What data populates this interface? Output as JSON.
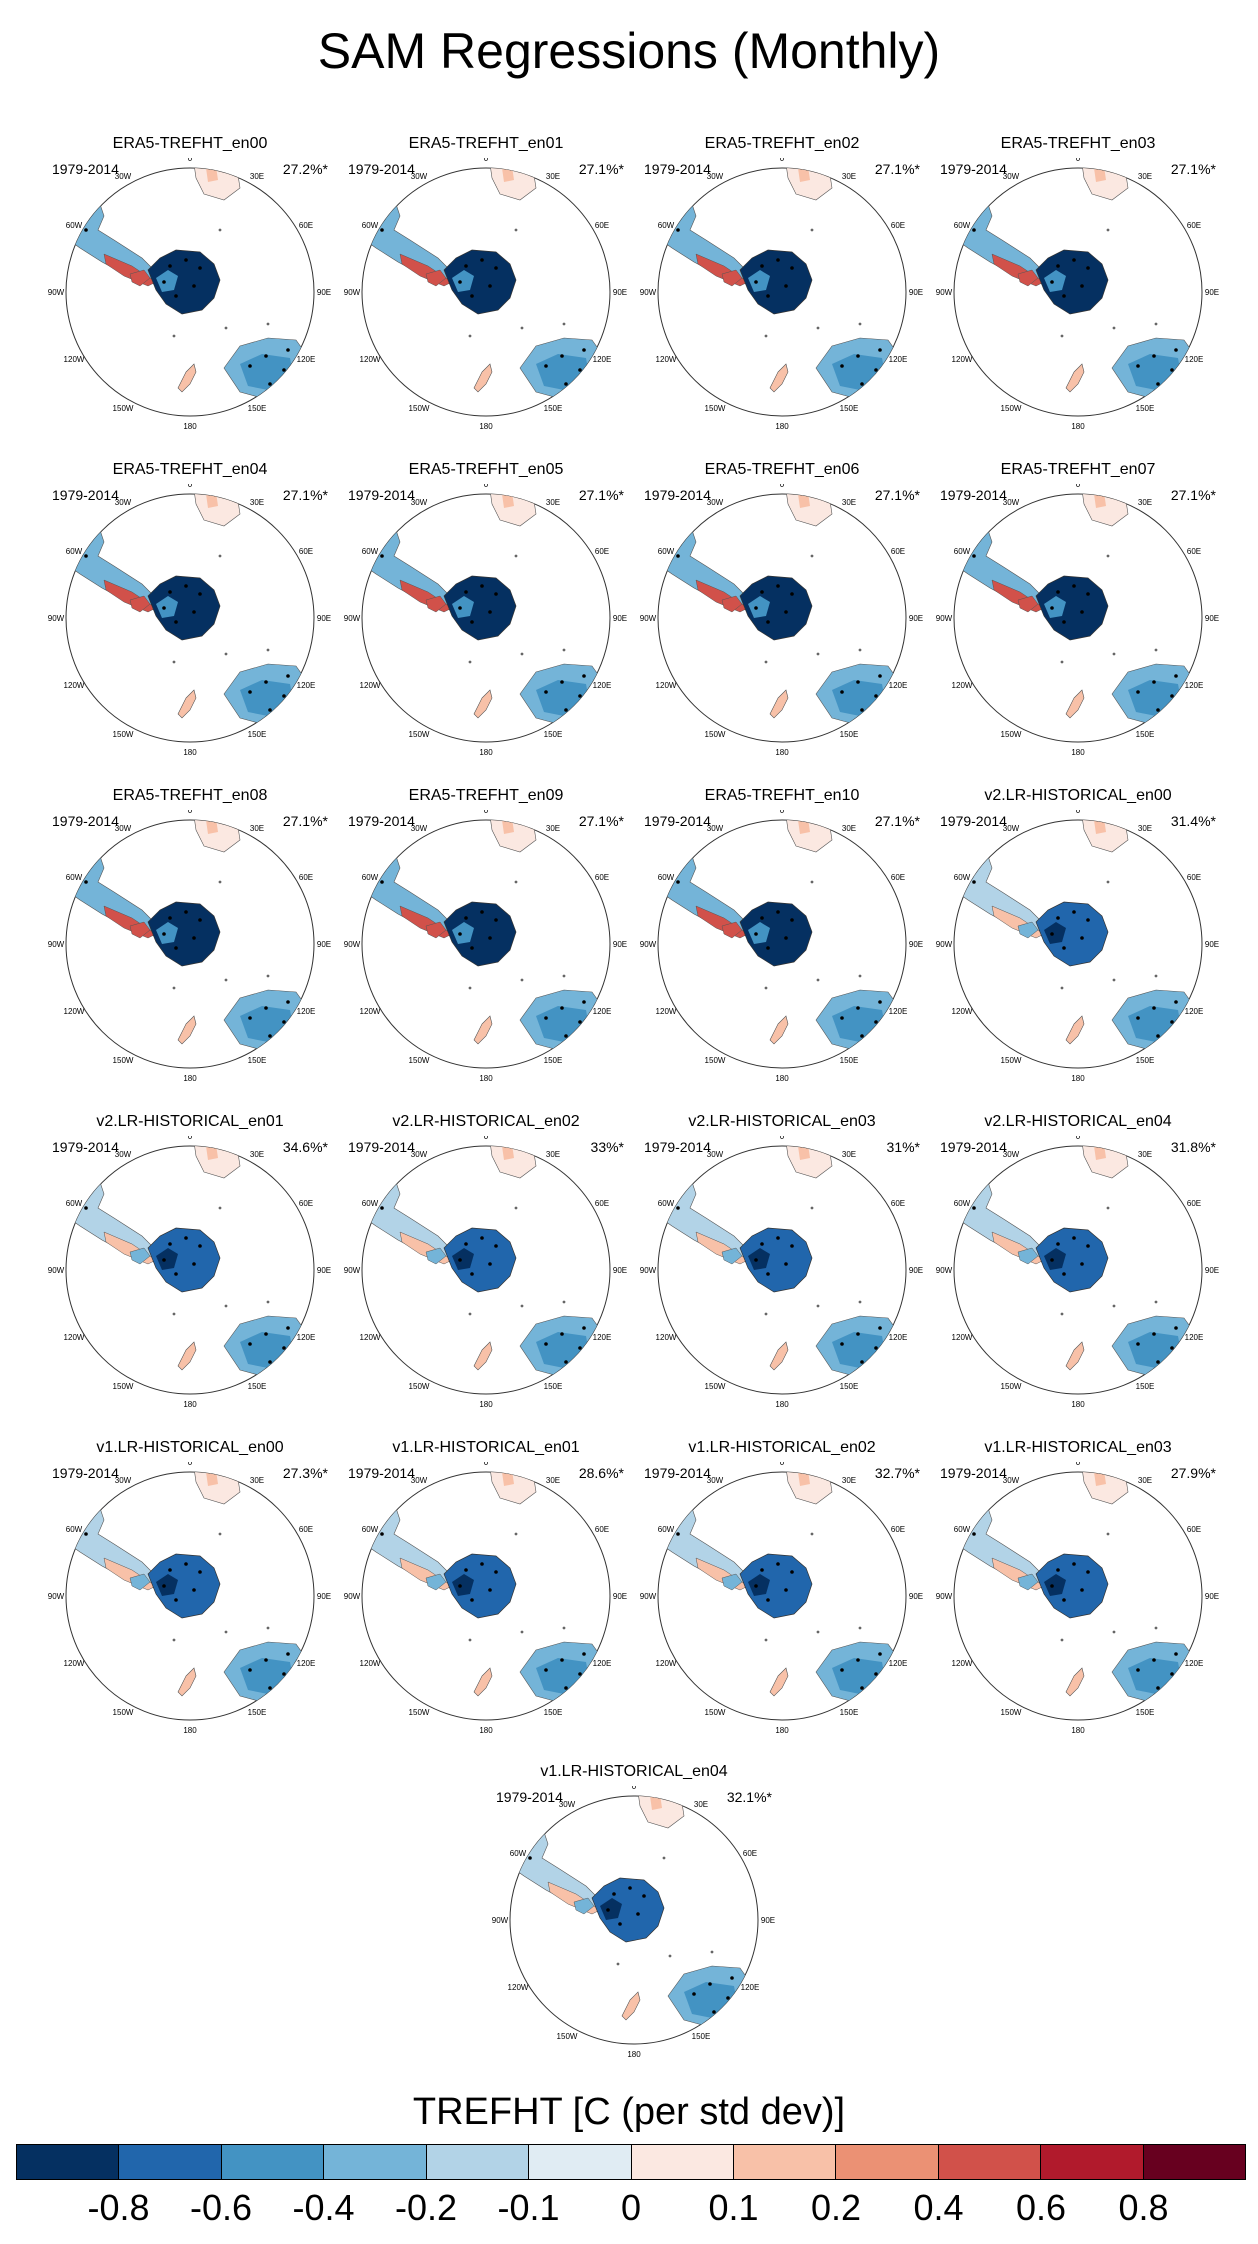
{
  "figure_title": "SAM Regressions (Monthly)",
  "period": "1979-2014",
  "lon_labels": [
    "0",
    "30E",
    "60E",
    "90E",
    "120E",
    "150E",
    "180",
    "150W",
    "120W",
    "90W",
    "60W",
    "30W"
  ],
  "panels": [
    {
      "title": "ERA5-TREFHT_en00",
      "pct": "27.2%*",
      "pattern": "era5"
    },
    {
      "title": "ERA5-TREFHT_en01",
      "pct": "27.1%*",
      "pattern": "era5"
    },
    {
      "title": "ERA5-TREFHT_en02",
      "pct": "27.1%*",
      "pattern": "era5"
    },
    {
      "title": "ERA5-TREFHT_en03",
      "pct": "27.1%*",
      "pattern": "era5"
    },
    {
      "title": "ERA5-TREFHT_en04",
      "pct": "27.1%*",
      "pattern": "era5"
    },
    {
      "title": "ERA5-TREFHT_en05",
      "pct": "27.1%*",
      "pattern": "era5"
    },
    {
      "title": "ERA5-TREFHT_en06",
      "pct": "27.1%*",
      "pattern": "era5"
    },
    {
      "title": "ERA5-TREFHT_en07",
      "pct": "27.1%*",
      "pattern": "era5"
    },
    {
      "title": "ERA5-TREFHT_en08",
      "pct": "27.1%*",
      "pattern": "era5"
    },
    {
      "title": "ERA5-TREFHT_en09",
      "pct": "27.1%*",
      "pattern": "era5"
    },
    {
      "title": "ERA5-TREFHT_en10",
      "pct": "27.1%*",
      "pattern": "era5"
    },
    {
      "title": "v2.LR-HISTORICAL_en00",
      "pct": "31.4%*",
      "pattern": "model"
    },
    {
      "title": "v2.LR-HISTORICAL_en01",
      "pct": "34.6%*",
      "pattern": "model"
    },
    {
      "title": "v2.LR-HISTORICAL_en02",
      "pct": "33%*",
      "pattern": "model"
    },
    {
      "title": "v2.LR-HISTORICAL_en03",
      "pct": "31%*",
      "pattern": "model"
    },
    {
      "title": "v2.LR-HISTORICAL_en04",
      "pct": "31.8%*",
      "pattern": "model"
    },
    {
      "title": "v1.LR-HISTORICAL_en00",
      "pct": "27.3%*",
      "pattern": "model"
    },
    {
      "title": "v1.LR-HISTORICAL_en01",
      "pct": "28.6%*",
      "pattern": "model"
    },
    {
      "title": "v1.LR-HISTORICAL_en02",
      "pct": "32.7%*",
      "pattern": "model"
    },
    {
      "title": "v1.LR-HISTORICAL_en03",
      "pct": "27.9%*",
      "pattern": "model"
    },
    {
      "title": "v1.LR-HISTORICAL_en04",
      "pct": "32.1%*",
      "pattern": "model"
    }
  ],
  "colorbar": {
    "title": "TREFHT [C (per std dev)]",
    "tick_labels": [
      "-0.8",
      "-0.6",
      "-0.4",
      "-0.2",
      "-0.1",
      "0",
      "0.1",
      "0.2",
      "0.4",
      "0.6",
      "0.8"
    ],
    "colors": [
      "#053061",
      "#2166ac",
      "#4393c3",
      "#74b4d8",
      "#b2d3e7",
      "#e0ecf3",
      "#fbe8e1",
      "#f8c1a8",
      "#eb9174",
      "#d1514a",
      "#b11a2c",
      "#67001f"
    ]
  }
}
